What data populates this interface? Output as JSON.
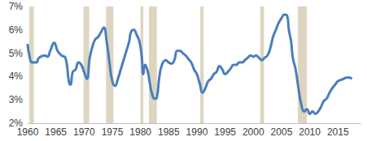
{
  "chart_data": {
    "type": "line",
    "color": "#4a7ebb",
    "grid": false,
    "x": [
      1960,
      1960.3,
      1960.8,
      1961.5,
      1962,
      1963,
      1963.5,
      1964,
      1964.7,
      1965.3,
      1966,
      1966.7,
      1967.3,
      1967.6,
      1968,
      1968.5,
      1969,
      1969.5,
      1970,
      1970.5,
      1971,
      1971.5,
      1972,
      1972.5,
      1973,
      1973.5,
      1974,
      1974.5,
      1975,
      1975.5,
      1976,
      1976.5,
      1977,
      1977.5,
      1978,
      1978.3,
      1978.8,
      1979.3,
      1979.8,
      1980.2,
      1980.5,
      1980.8,
      1981.2,
      1981.6,
      1982,
      1982.5,
      1982.9,
      1983.3,
      1983.8,
      1984.5,
      1985,
      1985.5,
      1986,
      1986.5,
      1987,
      1987.5,
      1988,
      1988.5,
      1989,
      1989.5,
      1990,
      1990.5,
      1991,
      1991.5,
      1992,
      1992.5,
      1993,
      1993.5,
      1994,
      1994.5,
      1995,
      1995.5,
      1996,
      1996.5,
      1997,
      1997.5,
      1998,
      1998.5,
      1999,
      1999.5,
      2000,
      2000.5,
      2001,
      2001.5,
      2002,
      2002.5,
      2003,
      2003.5,
      2004,
      2004.5,
      2005,
      2005.5,
      2006,
      2006.3,
      2006.7,
      2007,
      2007.5,
      2008,
      2008.5,
      2009,
      2009.5,
      2010,
      2010.5,
      2011,
      2011.5,
      2012,
      2012.5,
      2013,
      2013.5,
      2014,
      2014.5,
      2015,
      2015.5,
      2016,
      2016.5,
      2017,
      2017.5
    ],
    "values": [
      5.4,
      4.9,
      4.6,
      4.6,
      4.8,
      4.9,
      4.85,
      5.1,
      5.45,
      5.1,
      4.9,
      4.8,
      3.8,
      3.65,
      4.2,
      4.3,
      4.6,
      4.5,
      4.2,
      3.9,
      4.8,
      5.3,
      5.6,
      5.7,
      5.9,
      6.1,
      5.5,
      4.6,
      3.8,
      3.6,
      3.9,
      4.3,
      4.7,
      5.1,
      5.5,
      5.9,
      6.0,
      5.8,
      5.5,
      4.9,
      4.1,
      4.5,
      4.3,
      3.8,
      3.3,
      3.05,
      3.1,
      3.9,
      4.5,
      4.7,
      4.6,
      4.55,
      4.7,
      5.1,
      5.1,
      5.0,
      4.9,
      4.75,
      4.6,
      4.3,
      4.1,
      3.7,
      3.3,
      3.5,
      3.8,
      3.9,
      4.1,
      4.2,
      4.45,
      4.3,
      4.1,
      4.2,
      4.35,
      4.5,
      4.5,
      4.6,
      4.6,
      4.7,
      4.8,
      4.9,
      4.85,
      4.9,
      4.8,
      4.7,
      4.8,
      4.9,
      5.2,
      5.7,
      6.0,
      6.3,
      6.5,
      6.65,
      6.6,
      6.0,
      5.5,
      4.8,
      4.3,
      3.5,
      2.8,
      2.5,
      2.6,
      2.4,
      2.5,
      2.4,
      2.5,
      2.7,
      2.95,
      3.05,
      3.3,
      3.5,
      3.65,
      3.8,
      3.85,
      3.9,
      3.95,
      3.95,
      3.9
    ],
    "recessions": [
      [
        1960.3,
        1961.1
      ],
      [
        1969.9,
        1970.9
      ],
      [
        1973.9,
        1975.2
      ],
      [
        1980.0,
        1980.5
      ],
      [
        1981.5,
        1982.9
      ],
      [
        1990.6,
        1991.2
      ],
      [
        2001.2,
        2001.9
      ],
      [
        2007.9,
        2009.5
      ]
    ],
    "recession_color": "#ddd5bf",
    "xlim": [
      1960,
      2019
    ],
    "xticks": [
      1960,
      1965,
      1970,
      1975,
      1980,
      1985,
      1990,
      1995,
      2000,
      2005,
      2010,
      2015
    ],
    "ylim": [
      2,
      7
    ],
    "yticks": [
      {
        "value": 2,
        "label": "2%"
      },
      {
        "value": 3,
        "label": "3%"
      },
      {
        "value": 4,
        "label": "4%"
      },
      {
        "value": 5,
        "label": "5%"
      },
      {
        "value": 6,
        "label": "6%"
      },
      {
        "value": 7,
        "label": "7%"
      }
    ]
  }
}
